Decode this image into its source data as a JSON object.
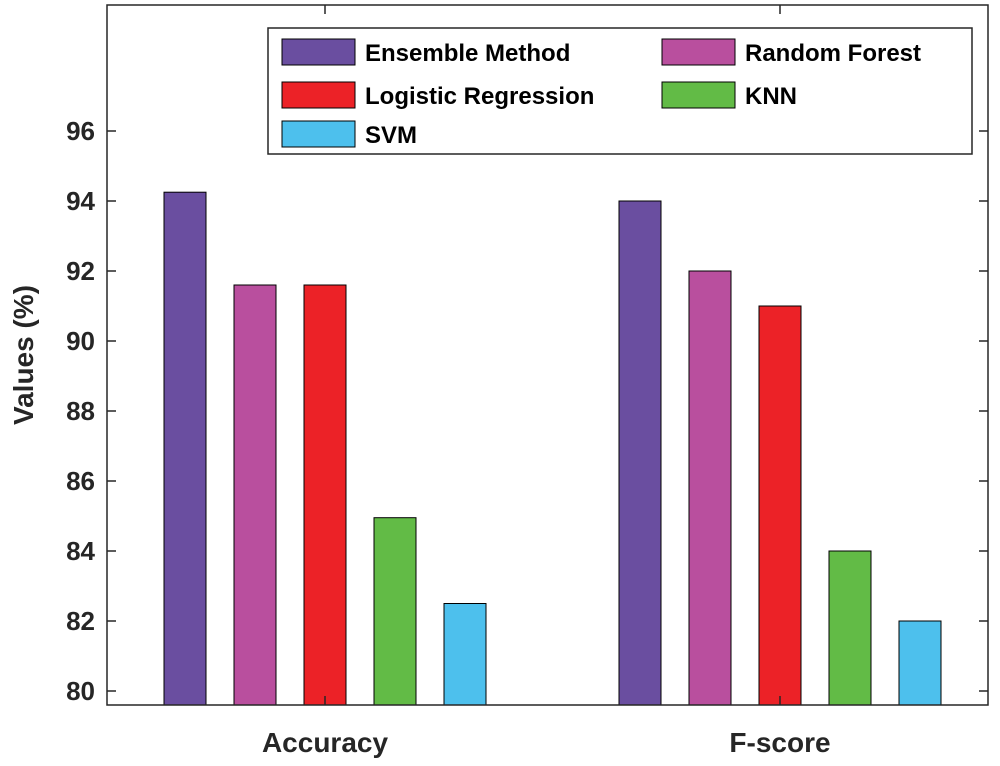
{
  "chart_data": {
    "type": "bar",
    "title": "",
    "xlabel": "",
    "ylabel": "Values (%)",
    "ylim": [
      79.6,
      99.6
    ],
    "yticks": [
      80,
      82,
      84,
      86,
      88,
      90,
      92,
      94,
      96
    ],
    "grid": false,
    "legend_position": "top-right",
    "categories": [
      "Accuracy",
      "F-score"
    ],
    "series": [
      {
        "name": "Ensemble Method",
        "values": [
          94.25,
          94.0
        ],
        "color": "#6a4ea0"
      },
      {
        "name": "Random Forest",
        "values": [
          91.6,
          92.0
        ],
        "color": "#b94f9e"
      },
      {
        "name": "Logistic Regression",
        "values": [
          91.6,
          91.0
        ],
        "color": "#ec2227"
      },
      {
        "name": "KNN",
        "values": [
          84.95,
          84.0
        ],
        "color": "#62bb46"
      },
      {
        "name": "SVM",
        "values": [
          82.5,
          82.0
        ],
        "color": "#4dc0ed"
      }
    ]
  }
}
